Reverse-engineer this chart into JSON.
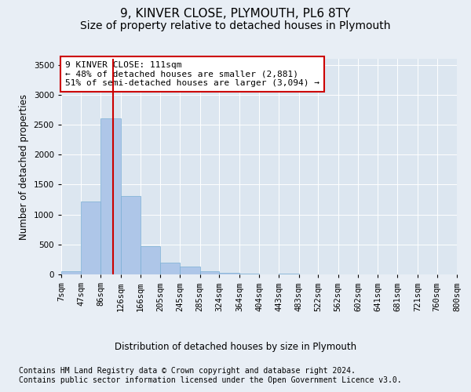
{
  "title": "9, KINVER CLOSE, PLYMOUTH, PL6 8TY",
  "subtitle": "Size of property relative to detached houses in Plymouth",
  "xlabel": "Distribution of detached houses by size in Plymouth",
  "ylabel": "Number of detached properties",
  "bin_edges": [
    7,
    47,
    86,
    126,
    166,
    205,
    245,
    285,
    324,
    364,
    404,
    443,
    483,
    522,
    562,
    602,
    641,
    681,
    721,
    760,
    800
  ],
  "bin_labels": [
    "7sqm",
    "47sqm",
    "86sqm",
    "126sqm",
    "166sqm",
    "205sqm",
    "245sqm",
    "285sqm",
    "324sqm",
    "364sqm",
    "404sqm",
    "443sqm",
    "483sqm",
    "522sqm",
    "562sqm",
    "602sqm",
    "641sqm",
    "681sqm",
    "721sqm",
    "760sqm",
    "800sqm"
  ],
  "bar_heights": [
    50,
    1220,
    2600,
    1310,
    470,
    200,
    130,
    50,
    30,
    18,
    5,
    10,
    3,
    0,
    0,
    0,
    0,
    0,
    0,
    0
  ],
  "bar_color": "#aec6e8",
  "bar_edgecolor": "#7aafd4",
  "vline_x": 111,
  "vline_color": "#cc0000",
  "annotation_text": "9 KINVER CLOSE: 111sqm\n← 48% of detached houses are smaller (2,881)\n51% of semi-detached houses are larger (3,094) →",
  "annotation_box_color": "#cc0000",
  "ylim": [
    0,
    3600
  ],
  "yticks": [
    0,
    500,
    1000,
    1500,
    2000,
    2500,
    3000,
    3500
  ],
  "background_color": "#e8eef5",
  "plot_background": "#dce6f0",
  "footer_line1": "Contains HM Land Registry data © Crown copyright and database right 2024.",
  "footer_line2": "Contains public sector information licensed under the Open Government Licence v3.0.",
  "title_fontsize": 11,
  "subtitle_fontsize": 10,
  "axis_label_fontsize": 8.5,
  "tick_fontsize": 7.5,
  "annotation_fontsize": 8,
  "footer_fontsize": 7
}
